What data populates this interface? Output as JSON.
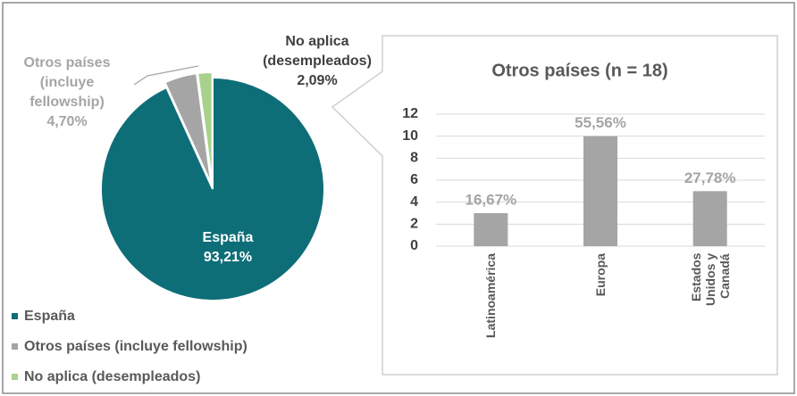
{
  "chart_data": [
    {
      "type": "pie",
      "categories": [
        "España",
        "Otros países (incluye fellowship)",
        "No aplica (desempleados)"
      ],
      "values": [
        93.21,
        4.7,
        2.09
      ],
      "value_labels": [
        "93,21%",
        "4,70%",
        "2,09%"
      ],
      "colors": [
        "#0e6e78",
        "#a5a5a5",
        "#a9d18e"
      ],
      "legend": "bottom-left"
    },
    {
      "type": "bar",
      "title": "Otros países (n = 18)",
      "categories": [
        "Latinoamérica",
        "Europa",
        "Estados Unidos y Canadá"
      ],
      "values": [
        3,
        10,
        5
      ],
      "percentages": [
        16.67,
        55.56,
        27.78
      ],
      "percentage_labels": [
        "16,67%",
        "55,56%",
        "27,78%"
      ],
      "color": "#a5a5a5",
      "ylim": [
        0,
        12
      ],
      "yticks": [
        0,
        2,
        4,
        6,
        8,
        10,
        12
      ],
      "grid": true
    }
  ]
}
